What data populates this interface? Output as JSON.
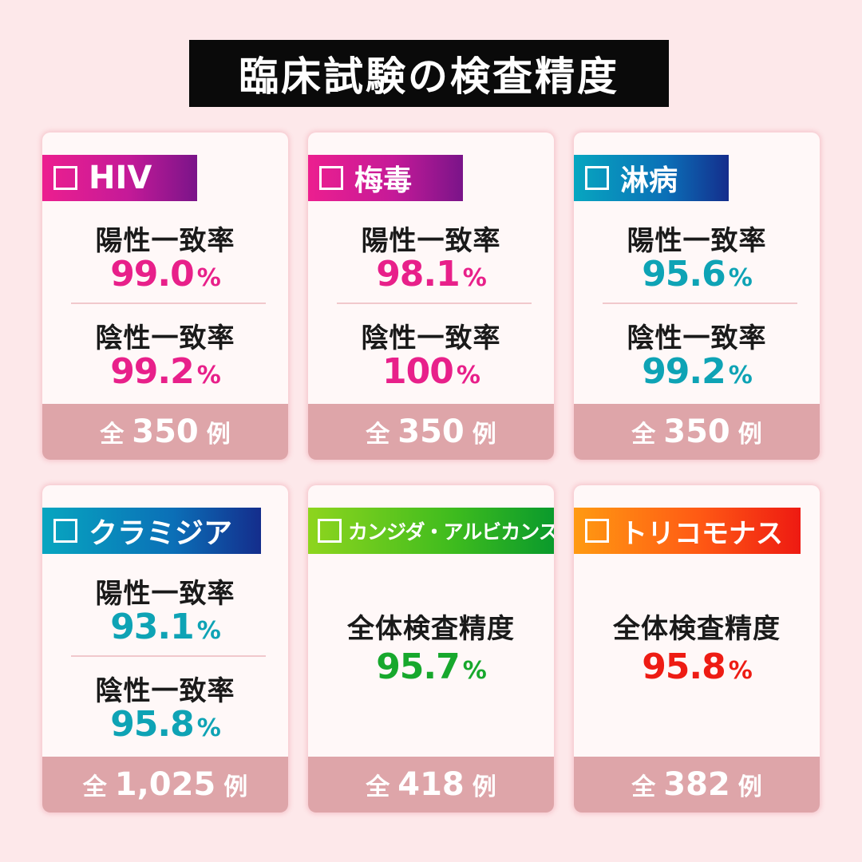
{
  "title": "臨床試験の検査精度",
  "cards": [
    {
      "name": "HIV",
      "positive_label": "陽性一致率",
      "positive_value": "99.0",
      "negative_label": "陰性一致率",
      "negative_value": "99.2",
      "pct": "%",
      "footer_prefix": "全",
      "footer_count": "350",
      "footer_suffix": "例"
    },
    {
      "name": "梅毒",
      "positive_label": "陽性一致率",
      "positive_value": "98.1",
      "negative_label": "陰性一致率",
      "negative_value": "100",
      "pct": "%",
      "footer_prefix": "全",
      "footer_count": "350",
      "footer_suffix": "例"
    },
    {
      "name": "淋病",
      "positive_label": "陽性一致率",
      "positive_value": "95.6",
      "negative_label": "陰性一致率",
      "negative_value": "99.2",
      "pct": "%",
      "footer_prefix": "全",
      "footer_count": "350",
      "footer_suffix": "例"
    },
    {
      "name": "クラミジア",
      "positive_label": "陽性一致率",
      "positive_value": "93.1",
      "negative_label": "陰性一致率",
      "negative_value": "95.8",
      "pct": "%",
      "footer_prefix": "全",
      "footer_count": "1,025",
      "footer_suffix": "例"
    },
    {
      "name": "カンジダ・アルビカンス",
      "overall_label": "全体検査精度",
      "overall_value": "95.7",
      "pct": "%",
      "footer_prefix": "全",
      "footer_count": "418",
      "footer_suffix": "例"
    },
    {
      "name": "トリコモナス",
      "overall_label": "全体検査精度",
      "overall_value": "95.8",
      "pct": "%",
      "footer_prefix": "全",
      "footer_count": "382",
      "footer_suffix": "例"
    }
  ]
}
